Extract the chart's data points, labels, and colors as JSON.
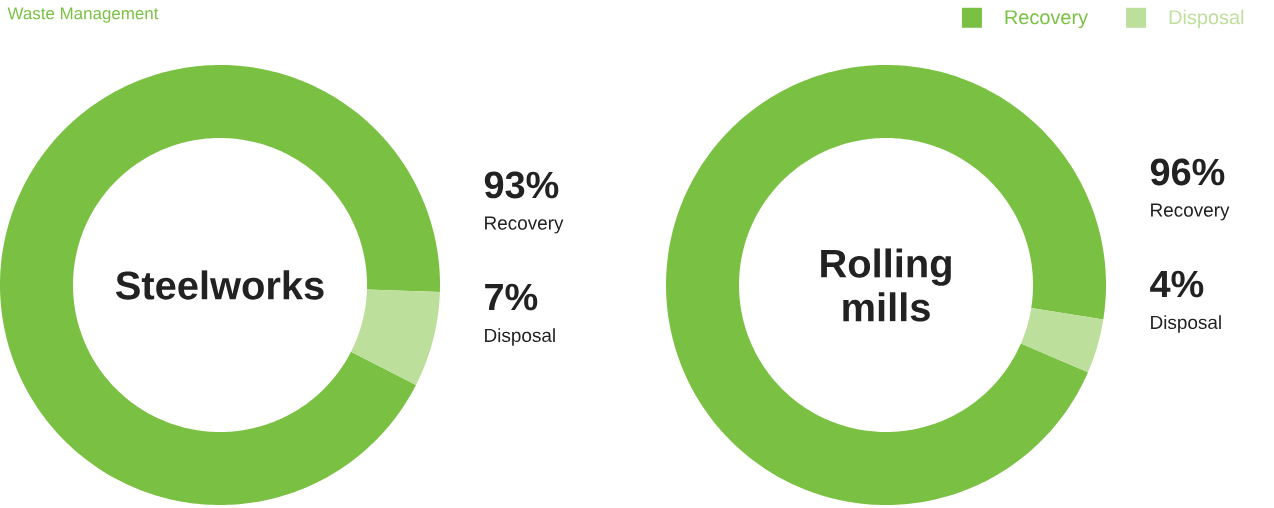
{
  "chart_data": [
    {
      "type": "donut",
      "title": "Steelworks",
      "annotations": [
        "Waste Management"
      ],
      "categories": [
        "Recovery",
        "Disposal"
      ],
      "values": [
        93,
        7
      ],
      "colors": [
        "#7ac143",
        "#bddf9c"
      ],
      "value_labels": [
        "93%",
        "7%"
      ]
    },
    {
      "type": "donut",
      "title": "Rolling mills",
      "categories": [
        "Recovery",
        "Disposal"
      ],
      "values": [
        96,
        4
      ],
      "colors": [
        "#7ac143",
        "#bddf9c"
      ],
      "value_labels": [
        "96%",
        "4%"
      ],
      "legend": "top right"
    }
  ]
}
